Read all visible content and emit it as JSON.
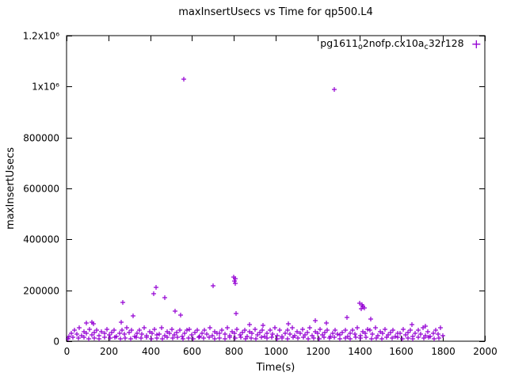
{
  "title": "maxInsertUsecs vs Time for qp500.L4",
  "legend": {
    "text_parts": [
      {
        "text": "pg1611",
        "sub": false
      },
      {
        "text": "o",
        "sub": true
      },
      {
        "text": "2nofp.cx10a",
        "sub": false
      },
      {
        "text": "c",
        "sub": true
      },
      {
        "text": "32r128",
        "sub": false
      }
    ],
    "marker": "+"
  },
  "chart_data": {
    "type": "scatter",
    "title": "maxInsertUsecs vs Time for qp500.L4",
    "xlabel": "Time(s)",
    "ylabel": "maxInsertUsecs",
    "series_name": "pg1611_o2nofp.cx10a_c32r128",
    "marker": "plus",
    "color": "#9400d3",
    "grid": false,
    "legend_position": "top-right",
    "xlim": [
      0,
      2000
    ],
    "ylim": [
      0,
      1200000
    ],
    "x_ticks": [
      0,
      200,
      400,
      600,
      800,
      1000,
      1200,
      1400,
      1600,
      1800,
      2000
    ],
    "x_tick_labels": [
      "0",
      "200",
      "400",
      "600",
      "800",
      "1000",
      "1200",
      "1400",
      "1600",
      "1800",
      "2000"
    ],
    "y_ticks": [
      0,
      200000,
      400000,
      600000,
      800000,
      1000000,
      1200000
    ],
    "y_tick_labels": [
      "0",
      "200000",
      "400000",
      "600000",
      "800000",
      "1x10⁶",
      "1.2x10⁶"
    ],
    "points": [
      [
        12,
        18000
      ],
      [
        24,
        32000
      ],
      [
        36,
        45000
      ],
      [
        48,
        27000
      ],
      [
        60,
        52000
      ],
      [
        72,
        22000
      ],
      [
        84,
        38000
      ],
      [
        96,
        30000
      ],
      [
        108,
        48000
      ],
      [
        120,
        25000
      ],
      [
        132,
        35000
      ],
      [
        144,
        42000
      ],
      [
        156,
        22000
      ],
      [
        168,
        38000
      ],
      [
        180,
        30000
      ],
      [
        192,
        48000
      ],
      [
        204,
        25000
      ],
      [
        216,
        35000
      ],
      [
        228,
        42000
      ],
      [
        240,
        18000
      ],
      [
        252,
        32000
      ],
      [
        264,
        45000
      ],
      [
        276,
        27000
      ],
      [
        288,
        52000
      ],
      [
        300,
        35000
      ],
      [
        312,
        42000
      ],
      [
        324,
        18000
      ],
      [
        336,
        32000
      ],
      [
        348,
        45000
      ],
      [
        360,
        27000
      ],
      [
        372,
        52000
      ],
      [
        384,
        22000
      ],
      [
        396,
        38000
      ],
      [
        408,
        30000
      ],
      [
        420,
        48000
      ],
      [
        432,
        25000
      ],
      [
        444,
        27000
      ],
      [
        456,
        52000
      ],
      [
        468,
        22000
      ],
      [
        480,
        38000
      ],
      [
        492,
        30000
      ],
      [
        504,
        48000
      ],
      [
        516,
        25000
      ],
      [
        528,
        35000
      ],
      [
        540,
        42000
      ],
      [
        552,
        18000
      ],
      [
        564,
        32000
      ],
      [
        576,
        45000
      ],
      [
        588,
        48000
      ],
      [
        600,
        25000
      ],
      [
        612,
        35000
      ],
      [
        624,
        42000
      ],
      [
        636,
        18000
      ],
      [
        648,
        32000
      ],
      [
        660,
        45000
      ],
      [
        672,
        27000
      ],
      [
        684,
        52000
      ],
      [
        696,
        22000
      ],
      [
        708,
        38000
      ],
      [
        720,
        30000
      ],
      [
        732,
        32000
      ],
      [
        744,
        45000
      ],
      [
        756,
        27000
      ],
      [
        768,
        52000
      ],
      [
        780,
        22000
      ],
      [
        792,
        38000
      ],
      [
        804,
        30000
      ],
      [
        816,
        48000
      ],
      [
        828,
        25000
      ],
      [
        840,
        35000
      ],
      [
        852,
        42000
      ],
      [
        864,
        18000
      ],
      [
        876,
        38000
      ],
      [
        888,
        30000
      ],
      [
        900,
        48000
      ],
      [
        912,
        25000
      ],
      [
        924,
        35000
      ],
      [
        936,
        42000
      ],
      [
        948,
        18000
      ],
      [
        960,
        32000
      ],
      [
        972,
        45000
      ],
      [
        984,
        27000
      ],
      [
        996,
        52000
      ],
      [
        1008,
        22000
      ],
      [
        1020,
        42000
      ],
      [
        1032,
        18000
      ],
      [
        1044,
        32000
      ],
      [
        1056,
        45000
      ],
      [
        1068,
        27000
      ],
      [
        1080,
        52000
      ],
      [
        1092,
        22000
      ],
      [
        1104,
        38000
      ],
      [
        1116,
        30000
      ],
      [
        1128,
        48000
      ],
      [
        1140,
        25000
      ],
      [
        1152,
        35000
      ],
      [
        1164,
        52000
      ],
      [
        1176,
        22000
      ],
      [
        1188,
        38000
      ],
      [
        1200,
        30000
      ],
      [
        1212,
        48000
      ],
      [
        1224,
        25000
      ],
      [
        1236,
        35000
      ],
      [
        1248,
        42000
      ],
      [
        1260,
        18000
      ],
      [
        1272,
        32000
      ],
      [
        1284,
        45000
      ],
      [
        1296,
        27000
      ],
      [
        1308,
        25000
      ],
      [
        1320,
        35000
      ],
      [
        1332,
        42000
      ],
      [
        1344,
        18000
      ],
      [
        1356,
        32000
      ],
      [
        1368,
        45000
      ],
      [
        1380,
        27000
      ],
      [
        1392,
        52000
      ],
      [
        1404,
        22000
      ],
      [
        1416,
        38000
      ],
      [
        1428,
        30000
      ],
      [
        1440,
        48000
      ],
      [
        1452,
        45000
      ],
      [
        1464,
        27000
      ],
      [
        1476,
        52000
      ],
      [
        1488,
        22000
      ],
      [
        1500,
        38000
      ],
      [
        1512,
        30000
      ],
      [
        1524,
        48000
      ],
      [
        1536,
        25000
      ],
      [
        1548,
        35000
      ],
      [
        1560,
        42000
      ],
      [
        1572,
        18000
      ],
      [
        1584,
        32000
      ],
      [
        1596,
        30000
      ],
      [
        1608,
        48000
      ],
      [
        1620,
        25000
      ],
      [
        1632,
        35000
      ],
      [
        1644,
        42000
      ],
      [
        1656,
        18000
      ],
      [
        1668,
        32000
      ],
      [
        1680,
        45000
      ],
      [
        1692,
        27000
      ],
      [
        1704,
        52000
      ],
      [
        1716,
        22000
      ],
      [
        1728,
        38000
      ],
      [
        1740,
        18000
      ],
      [
        1752,
        32000
      ],
      [
        1764,
        45000
      ],
      [
        1776,
        27000
      ],
      [
        1788,
        52000
      ],
      [
        1800,
        22000
      ],
      [
        7,
        9000
      ],
      [
        32,
        14000
      ],
      [
        57,
        11000
      ],
      [
        82,
        16000
      ],
      [
        107,
        8000
      ],
      [
        132,
        13000
      ],
      [
        157,
        9000
      ],
      [
        182,
        14000
      ],
      [
        207,
        11000
      ],
      [
        232,
        16000
      ],
      [
        257,
        8000
      ],
      [
        282,
        13000
      ],
      [
        307,
        9000
      ],
      [
        332,
        14000
      ],
      [
        357,
        11000
      ],
      [
        382,
        16000
      ],
      [
        407,
        8000
      ],
      [
        432,
        13000
      ],
      [
        457,
        9000
      ],
      [
        482,
        14000
      ],
      [
        507,
        11000
      ],
      [
        532,
        16000
      ],
      [
        557,
        8000
      ],
      [
        582,
        13000
      ],
      [
        607,
        9000
      ],
      [
        632,
        14000
      ],
      [
        657,
        11000
      ],
      [
        682,
        16000
      ],
      [
        707,
        8000
      ],
      [
        732,
        13000
      ],
      [
        757,
        9000
      ],
      [
        782,
        14000
      ],
      [
        807,
        11000
      ],
      [
        832,
        16000
      ],
      [
        857,
        8000
      ],
      [
        882,
        13000
      ],
      [
        907,
        9000
      ],
      [
        932,
        14000
      ],
      [
        957,
        11000
      ],
      [
        982,
        16000
      ],
      [
        1007,
        8000
      ],
      [
        1032,
        13000
      ],
      [
        1057,
        9000
      ],
      [
        1082,
        14000
      ],
      [
        1107,
        11000
      ],
      [
        1132,
        16000
      ],
      [
        1157,
        8000
      ],
      [
        1182,
        13000
      ],
      [
        1207,
        9000
      ],
      [
        1232,
        14000
      ],
      [
        1257,
        11000
      ],
      [
        1282,
        16000
      ],
      [
        1307,
        8000
      ],
      [
        1332,
        13000
      ],
      [
        1357,
        9000
      ],
      [
        1382,
        14000
      ],
      [
        1407,
        11000
      ],
      [
        1432,
        16000
      ],
      [
        1457,
        8000
      ],
      [
        1482,
        13000
      ],
      [
        1507,
        9000
      ],
      [
        1532,
        14000
      ],
      [
        1557,
        11000
      ],
      [
        1582,
        16000
      ],
      [
        1607,
        8000
      ],
      [
        1632,
        13000
      ],
      [
        1657,
        9000
      ],
      [
        1682,
        14000
      ],
      [
        1707,
        11000
      ],
      [
        1732,
        16000
      ],
      [
        1757,
        8000
      ],
      [
        1782,
        13000
      ],
      [
        96,
        70000
      ],
      [
        122,
        74000
      ],
      [
        130,
        68000
      ],
      [
        262,
        76000
      ],
      [
        270,
        152000
      ],
      [
        320,
        98000
      ],
      [
        415,
        188000
      ],
      [
        428,
        212000
      ],
      [
        468,
        172000
      ],
      [
        520,
        118000
      ],
      [
        545,
        104000
      ],
      [
        560,
        1030000
      ],
      [
        700,
        218000
      ],
      [
        800,
        252000
      ],
      [
        805,
        245000
      ],
      [
        803,
        236000
      ],
      [
        808,
        228000
      ],
      [
        812,
        108000
      ],
      [
        875,
        66000
      ],
      [
        940,
        62000
      ],
      [
        1060,
        68000
      ],
      [
        1188,
        82000
      ],
      [
        1244,
        72000
      ],
      [
        1280,
        990000
      ],
      [
        1340,
        92000
      ],
      [
        1402,
        148000
      ],
      [
        1408,
        127000
      ],
      [
        1412,
        143000
      ],
      [
        1418,
        138000
      ],
      [
        1425,
        132000
      ],
      [
        1455,
        88000
      ],
      [
        1650,
        64000
      ],
      [
        1717,
        60000
      ]
    ]
  }
}
